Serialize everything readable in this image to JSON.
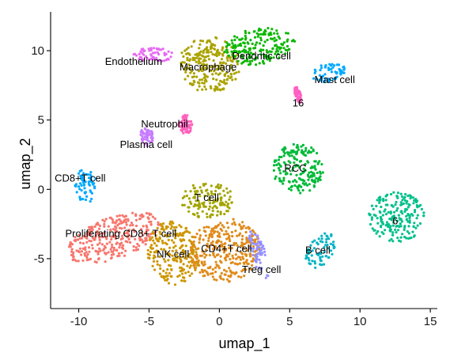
{
  "chart_data": {
    "type": "scatter",
    "title": "",
    "xlabel": "umap_1",
    "ylabel": "umap_2",
    "xlim": [
      -12,
      15.5
    ],
    "ylim": [
      -8.6,
      12.8
    ],
    "xticks": [
      -10,
      -5,
      0,
      5,
      10,
      15
    ],
    "yticks": [
      -5,
      0,
      5,
      10
    ],
    "xtick_labels": [
      "-10",
      "-5",
      "0",
      "5",
      "10",
      "15"
    ],
    "ytick_labels": [
      "-5",
      "0",
      "5",
      "10"
    ],
    "grid": false,
    "legend": "none",
    "clusters": [
      {
        "name": "Proliferating CD8+ T cell",
        "color": "#F8766D",
        "blobs": [
          [
            -7.5,
            -3.5,
            3.5,
            1.5,
            0.35
          ]
        ],
        "label_at": [
          -7.0,
          -3.2
        ]
      },
      {
        "name": "NK cell",
        "color": "#CD9600",
        "blobs": [
          [
            -3.3,
            -4.6,
            1.8,
            2.3,
            0.2
          ]
        ],
        "label_at": [
          -3.3,
          -4.7
        ]
      },
      {
        "name": "CD4+T cell",
        "color": "#E08B1A",
        "blobs": [
          [
            0.4,
            -4.4,
            2.5,
            2.3,
            0.2
          ]
        ],
        "label_at": [
          0.5,
          -4.3
        ]
      },
      {
        "name": "T cell",
        "color": "#A3A500",
        "blobs": [
          [
            -0.8,
            -0.8,
            1.9,
            1.3,
            0.0
          ]
        ],
        "label_at": [
          -0.9,
          -0.6
        ]
      },
      {
        "name": "Treg cell",
        "color": "#9590FF",
        "blobs": [
          [
            2.8,
            -4.7,
            0.5,
            1.8,
            0.3
          ]
        ],
        "label_at": [
          3.0,
          -5.8
        ]
      },
      {
        "name": "RCC",
        "color": "#00BA38",
        "blobs": [
          [
            5.6,
            1.5,
            1.8,
            1.8,
            0.0
          ]
        ],
        "label_at": [
          5.4,
          1.5
        ]
      },
      {
        "name": "6",
        "color": "#00C08B",
        "blobs": [
          [
            12.6,
            -2.0,
            2.0,
            1.8,
            0.0
          ]
        ],
        "label_at": [
          12.5,
          -2.3
        ]
      },
      {
        "name": "B cell",
        "color": "#00B4C4",
        "blobs": [
          [
            7.2,
            -4.4,
            0.9,
            1.4,
            -0.6
          ]
        ],
        "label_at": [
          7.0,
          -4.4
        ]
      },
      {
        "name": "CD8+T cell",
        "color": "#00A9FF",
        "blobs": [
          [
            -9.5,
            0.2,
            0.8,
            1.3,
            0.0
          ]
        ],
        "label_at": [
          -9.9,
          0.8
        ]
      },
      {
        "name": "Macrophage",
        "color": "#ABA300",
        "blobs": [
          [
            -0.7,
            9.0,
            2.2,
            2.0,
            0.0
          ]
        ],
        "label_at": [
          -0.8,
          8.8
        ]
      },
      {
        "name": "Dendritic cell",
        "color": "#0CB702",
        "blobs": [
          [
            2.8,
            10.3,
            2.6,
            1.3,
            0.15
          ]
        ],
        "label_at": [
          3.0,
          9.6
        ]
      },
      {
        "name": "Mast cell",
        "color": "#00A9FF",
        "blobs": [
          [
            7.8,
            8.4,
            1.2,
            0.7,
            0.2
          ]
        ],
        "label_at": [
          8.2,
          7.9
        ]
      },
      {
        "name": "Endothelium",
        "color": "#E76BF3",
        "blobs": [
          [
            -4.7,
            9.7,
            1.5,
            0.5,
            0.0
          ]
        ],
        "label_at": [
          -6.1,
          9.2
        ]
      },
      {
        "name": "Neutrophil",
        "color": "#FF62BC",
        "blobs": [
          [
            -2.4,
            4.7,
            0.5,
            0.7,
            0.0
          ]
        ],
        "label_at": [
          -3.9,
          4.7
        ]
      },
      {
        "name": "Plasma cell",
        "color": "#C77CFF",
        "blobs": [
          [
            -5.2,
            3.8,
            0.5,
            0.7,
            0.0
          ]
        ],
        "label_at": [
          -5.2,
          3.2
        ]
      },
      {
        "name": "16",
        "color": "#FF61C3",
        "blobs": [
          [
            5.6,
            6.8,
            0.2,
            0.6,
            0.3
          ]
        ],
        "label_at": [
          5.6,
          6.2
        ]
      }
    ]
  }
}
